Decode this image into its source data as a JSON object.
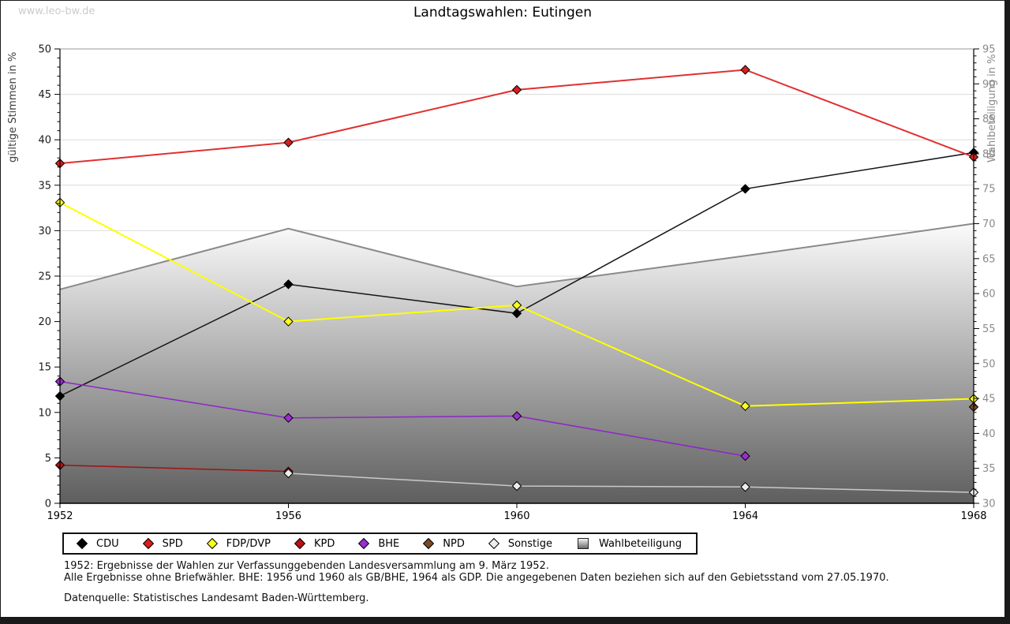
{
  "watermark": "www.leo-bw.de",
  "chart_data": {
    "type": "line",
    "title": "Landtagswahlen: Eutingen",
    "x_labels": [
      "1952",
      "1956",
      "1960",
      "1964",
      "1968"
    ],
    "left_axis": {
      "label": "gültige Stimmen in %",
      "min": 0,
      "max": 50,
      "tick_step": 5,
      "minor_step": 1
    },
    "right_axis": {
      "label": "Wahlbeteiligung in %",
      "min": 30,
      "max": 95,
      "tick_step": 5,
      "minor_step": 1
    },
    "grid": true,
    "legend_position": "bottom",
    "series": [
      {
        "name": "CDU",
        "axis": "left",
        "type": "line",
        "line_color": "#151515",
        "marker_color": "#000000",
        "values": [
          11.8,
          24.1,
          20.9,
          34.6,
          38.6
        ]
      },
      {
        "name": "SPD",
        "axis": "left",
        "type": "line",
        "line_color": "#e03030",
        "marker_color": "#dd1c1c",
        "values": [
          37.4,
          39.7,
          45.5,
          47.7,
          38.1
        ]
      },
      {
        "name": "FDP/DVP",
        "axis": "left",
        "type": "line",
        "line_color": "#ffff00",
        "marker_color": "#ffff22",
        "values": [
          33.1,
          20.0,
          21.8,
          10.7,
          11.5
        ]
      },
      {
        "name": "KPD",
        "axis": "left",
        "type": "line",
        "line_color": "#a31111",
        "marker_color": "#bb1111",
        "values": [
          4.2,
          3.5,
          null,
          null,
          null
        ]
      },
      {
        "name": "BHE",
        "axis": "left",
        "type": "line",
        "line_color": "#8c27c8",
        "marker_color": "#9a2ed2",
        "values": [
          13.4,
          9.4,
          9.6,
          5.2,
          null
        ]
      },
      {
        "name": "NPD",
        "axis": "left",
        "type": "line",
        "line_color": "#6f4320",
        "marker_color": "#7a4a28",
        "values": [
          null,
          null,
          null,
          null,
          10.6
        ]
      },
      {
        "name": "Sonstige",
        "axis": "left",
        "type": "line",
        "line_color": "#c9c9c9",
        "marker_color": "#ededed",
        "values": [
          null,
          3.3,
          1.9,
          1.8,
          1.2
        ]
      },
      {
        "name": "Wahlbeteiligung",
        "axis": "right",
        "type": "area",
        "line_color": "#8a8a8a",
        "area_gradient": [
          "#fbfbfb",
          "#5e5e5e"
        ],
        "values": [
          60.6,
          69.3,
          61.0,
          65.4,
          70.0
        ]
      }
    ]
  },
  "footnotes": [
    "1952: Ergebnisse der Wahlen zur Verfassunggebenden Landesversammlung am 9. März 1952.",
    "Alle Ergebnisse ohne Briefwähler. BHE: 1956 und 1960 als GB/BHE, 1964 als GDP. Die angegebenen Daten beziehen sich auf den Gebietsstand vom 27.05.1970.",
    "Datenquelle: Statistisches Landesamt Baden-Württemberg."
  ]
}
